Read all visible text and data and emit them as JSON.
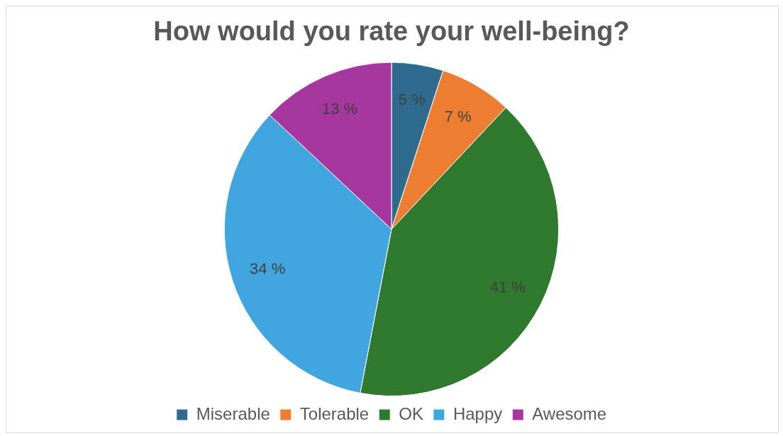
{
  "chart_data": {
    "type": "pie",
    "title": "How would you rate your well-being?",
    "categories": [
      "Miserable",
      "Tolerable",
      "OK",
      "Happy",
      "Awesome"
    ],
    "values": [
      5,
      7,
      41,
      34,
      13
    ],
    "value_labels": [
      "5 %",
      "7 %",
      "41 %",
      "34 %",
      "13 %"
    ],
    "colors": [
      "#2f6b8f",
      "#ed7d31",
      "#2f7a2e",
      "#41a6e0",
      "#a5379f"
    ],
    "legend": "bottom"
  }
}
